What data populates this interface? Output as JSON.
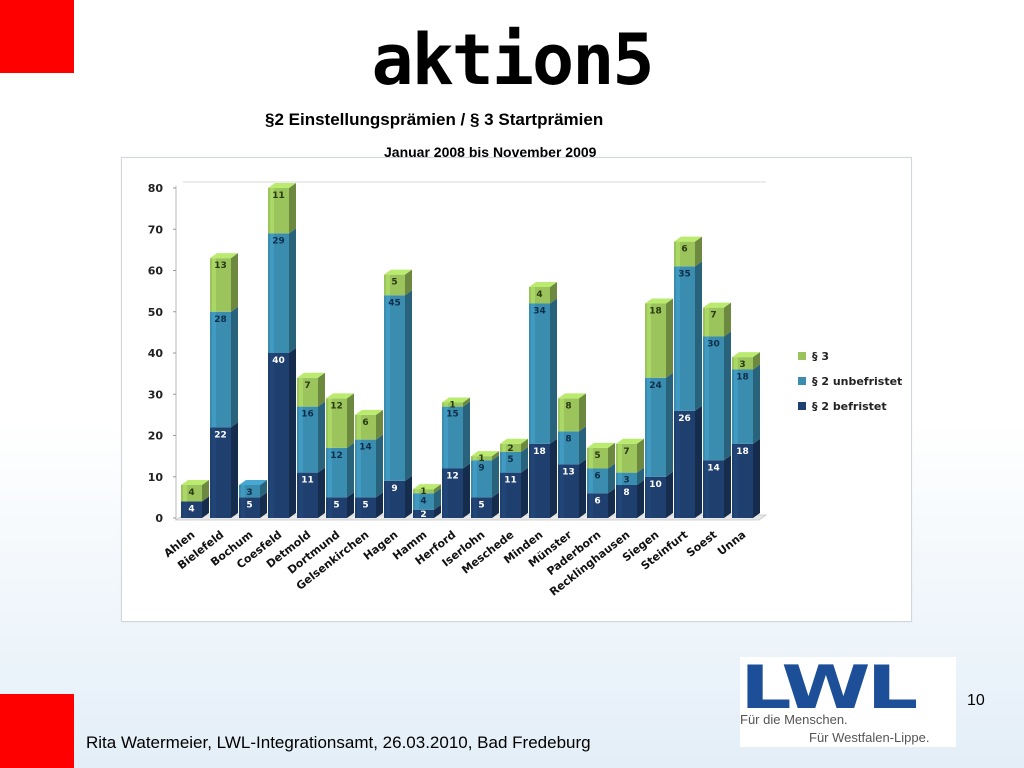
{
  "header": {
    "title": "aktion5",
    "subtitle": "§2 Einstellungsprämien / § 3 Startprämien",
    "date_range": "Januar 2008 bis November 2009"
  },
  "footer": {
    "text": "Rita Watermeier, LWL-Integrationsamt, 26.03.2010, Bad Fredeburg",
    "page_number": "10"
  },
  "logo": {
    "word": "LWL",
    "line1": "Für die Menschen.",
    "line2": "Für Westfalen-Lippe."
  },
  "colors": {
    "accent_red": "#ff0000",
    "series_befristet": "#1f3f6e",
    "series_unbefristet": "#3b8db0",
    "series_s3": "#9bc45c",
    "logo_blue": "#1c4f97"
  },
  "chart_data": {
    "type": "bar",
    "stacked": true,
    "three_d": true,
    "categories": [
      "Ahlen",
      "Bielefeld",
      "Bochum",
      "Coesfeld",
      "Detmold",
      "Dortmund",
      "Gelsenkirchen",
      "Hagen",
      "Hamm",
      "Herford",
      "Iserlohn",
      "Meschede",
      "Minden",
      "Münster",
      "Paderborn",
      "Recklinghausen",
      "Siegen",
      "Steinfurt",
      "Soest",
      "Unna"
    ],
    "series": [
      {
        "name": "§ 2 befristet",
        "color": "#1f3f6e",
        "values": [
          4,
          22,
          5,
          40,
          11,
          5,
          5,
          9,
          2,
          12,
          5,
          11,
          18,
          13,
          6,
          8,
          10,
          26,
          14,
          18
        ]
      },
      {
        "name": "§ 2 unbefristet",
        "color": "#3b8db0",
        "values": [
          0,
          28,
          3,
          29,
          16,
          12,
          14,
          45,
          4,
          15,
          9,
          5,
          34,
          8,
          6,
          3,
          24,
          35,
          30,
          18
        ]
      },
      {
        "name": "§ 3",
        "color": "#9bc45c",
        "values": [
          4,
          13,
          0,
          11,
          7,
          12,
          6,
          5,
          1,
          1,
          1,
          2,
          4,
          8,
          5,
          7,
          18,
          6,
          7,
          3
        ]
      }
    ],
    "ylim": [
      0,
      80
    ],
    "yticks": [
      0,
      10,
      20,
      30,
      40,
      50,
      60,
      70,
      80
    ],
    "legend_position": "right",
    "grid": false
  }
}
